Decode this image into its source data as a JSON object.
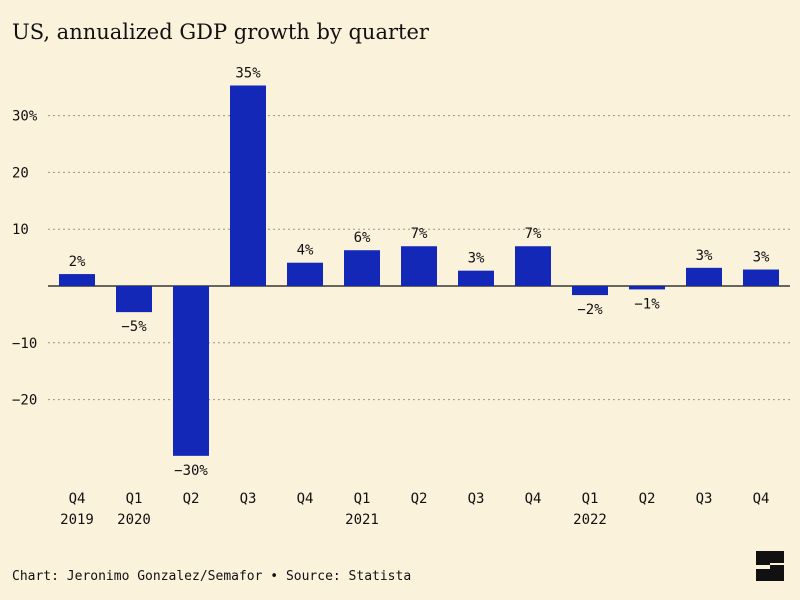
{
  "title": "US, annualized GDP growth by quarter",
  "footer": {
    "credit": "Chart: Jeronimo Gonzalez/Semafor",
    "separator": "•",
    "source": "Source: Statista"
  },
  "colors": {
    "background": "#fbf2dc",
    "bar": "#1428b8",
    "text": "#111111",
    "grid": "#9a9486"
  },
  "logo_icon": "semafor-logo-icon",
  "chart_data": {
    "type": "bar",
    "categories": [
      "Q4 2019",
      "Q1 2020",
      "Q2 2020",
      "Q3 2020",
      "Q4 2020",
      "Q1 2021",
      "Q2 2021",
      "Q3 2021",
      "Q4 2021",
      "Q1 2022",
      "Q2 2022",
      "Q3 2022",
      "Q4 2022"
    ],
    "x_tick_labels": [
      {
        "quarter": "Q4",
        "year": "2019"
      },
      {
        "quarter": "Q1",
        "year": "2020"
      },
      {
        "quarter": "Q2",
        "year": ""
      },
      {
        "quarter": "Q3",
        "year": ""
      },
      {
        "quarter": "Q4",
        "year": ""
      },
      {
        "quarter": "Q1",
        "year": "2021"
      },
      {
        "quarter": "Q2",
        "year": ""
      },
      {
        "quarter": "Q3",
        "year": ""
      },
      {
        "quarter": "Q4",
        "year": ""
      },
      {
        "quarter": "Q1",
        "year": "2022"
      },
      {
        "quarter": "Q2",
        "year": ""
      },
      {
        "quarter": "Q3",
        "year": ""
      },
      {
        "quarter": "Q4",
        "year": ""
      }
    ],
    "values": [
      2.1,
      -4.6,
      -29.9,
      35.3,
      4.1,
      6.3,
      7.0,
      2.7,
      7.0,
      -1.6,
      -0.6,
      3.2,
      2.9
    ],
    "data_labels": [
      "2%",
      "−5%",
      "−30%",
      "35%",
      "4%",
      "6%",
      "7%",
      "3%",
      "7%",
      "−2%",
      "−1%",
      "3%",
      "3%"
    ],
    "y_ticks": [
      30,
      20,
      10,
      -10,
      -20
    ],
    "y_tick_labels": [
      "30%",
      "20",
      "10",
      "−10",
      "−20"
    ],
    "ylim": [
      -30,
      35
    ],
    "grid": true,
    "legend": false
  }
}
